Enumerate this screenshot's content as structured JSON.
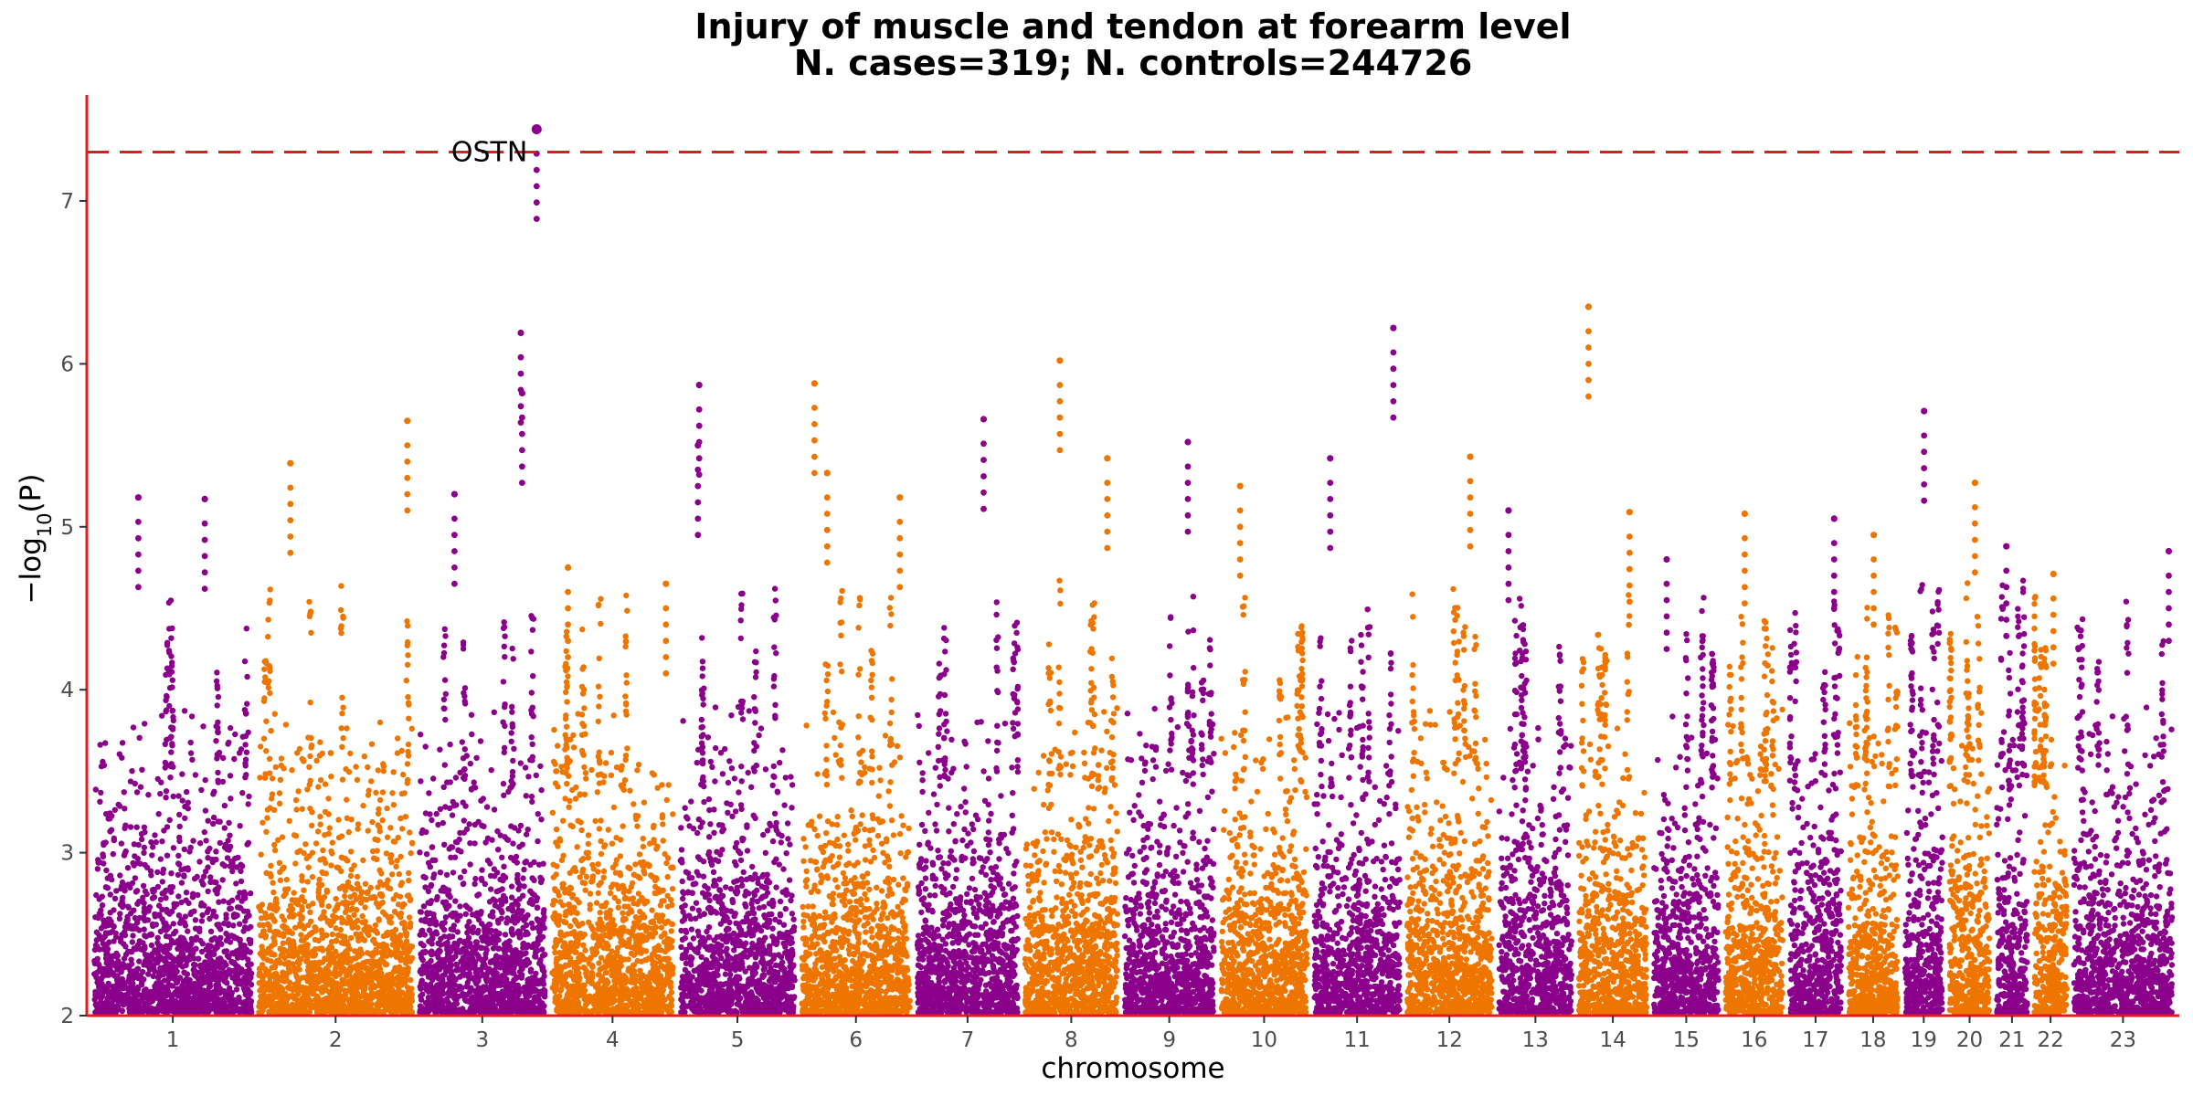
{
  "chart_data": {
    "type": "scatter",
    "subtype": "manhattan",
    "title": "Injury of muscle and tendon at forearm level",
    "subtitle": "N. cases=319; N. controls=244726",
    "xlabel": "chromosome",
    "ylabel_prefix": "−log",
    "ylabel_sub": "10",
    "ylabel_suffix": "(P)",
    "ylim": [
      2,
      7.65
    ],
    "yticks": [
      2,
      3,
      4,
      5,
      6,
      7
    ],
    "grid": false,
    "legend": "none",
    "significance_threshold": 7.3,
    "colors": {
      "odd": "#8B008B",
      "even": "#EE7600",
      "threshold": "#E41A1C",
      "axis": "#E41A1C"
    },
    "chromosomes": [
      {
        "label": "1",
        "length": 249
      },
      {
        "label": "2",
        "length": 243
      },
      {
        "label": "3",
        "length": 198
      },
      {
        "label": "4",
        "length": 191
      },
      {
        "label": "5",
        "length": 181
      },
      {
        "label": "6",
        "length": 171
      },
      {
        "label": "7",
        "length": 159
      },
      {
        "label": "8",
        "length": 146
      },
      {
        "label": "9",
        "length": 141
      },
      {
        "label": "10",
        "length": 136
      },
      {
        "label": "11",
        "length": 135
      },
      {
        "label": "12",
        "length": 134
      },
      {
        "label": "13",
        "length": 115
      },
      {
        "label": "14",
        "length": 107
      },
      {
        "label": "15",
        "length": 102
      },
      {
        "label": "16",
        "length": 90
      },
      {
        "label": "17",
        "length": 81
      },
      {
        "label": "18",
        "length": 78
      },
      {
        "label": "19",
        "length": 59
      },
      {
        "label": "20",
        "length": 63
      },
      {
        "label": "21",
        "length": 48
      },
      {
        "label": "22",
        "length": 51
      },
      {
        "label": "23",
        "length": 155
      }
    ],
    "top_hits": [
      {
        "chr": "1",
        "pos": 175,
        "y": 5.17
      },
      {
        "chr": "1",
        "pos": 70,
        "y": 5.18
      },
      {
        "chr": "2",
        "pos": 50,
        "y": 5.39
      },
      {
        "chr": "2",
        "pos": 235,
        "y": 5.65
      },
      {
        "chr": "3",
        "pos": 55,
        "y": 5.2
      },
      {
        "chr": "3",
        "pos": 160,
        "y": 6.19
      },
      {
        "chr": "3",
        "pos": 162,
        "y": 5.82
      },
      {
        "chr": "3",
        "pos": 185,
        "y": 7.44,
        "label": "OSTN"
      },
      {
        "chr": "4",
        "pos": 25,
        "y": 4.75
      },
      {
        "chr": "4",
        "pos": 180,
        "y": 4.65
      },
      {
        "chr": "5",
        "pos": 30,
        "y": 5.87
      },
      {
        "chr": "5",
        "pos": 28,
        "y": 5.5
      },
      {
        "chr": "6",
        "pos": 20,
        "y": 5.88
      },
      {
        "chr": "6",
        "pos": 40,
        "y": 5.33
      },
      {
        "chr": "6",
        "pos": 155,
        "y": 5.18
      },
      {
        "chr": "7",
        "pos": 105,
        "y": 5.66
      },
      {
        "chr": "8",
        "pos": 55,
        "y": 6.02
      },
      {
        "chr": "8",
        "pos": 130,
        "y": 5.42
      },
      {
        "chr": "9",
        "pos": 100,
        "y": 5.52
      },
      {
        "chr": "10",
        "pos": 30,
        "y": 5.25
      },
      {
        "chr": "11",
        "pos": 25,
        "y": 5.42
      },
      {
        "chr": "11",
        "pos": 125,
        "y": 6.22
      },
      {
        "chr": "12",
        "pos": 100,
        "y": 5.43
      },
      {
        "chr": "13",
        "pos": 15,
        "y": 5.1
      },
      {
        "chr": "14",
        "pos": 15,
        "y": 6.35
      },
      {
        "chr": "14",
        "pos": 80,
        "y": 5.09
      },
      {
        "chr": "15",
        "pos": 20,
        "y": 4.8
      },
      {
        "chr": "16",
        "pos": 30,
        "y": 5.08
      },
      {
        "chr": "17",
        "pos": 70,
        "y": 5.05
      },
      {
        "chr": "18",
        "pos": 40,
        "y": 4.95
      },
      {
        "chr": "19",
        "pos": 30,
        "y": 5.71
      },
      {
        "chr": "20",
        "pos": 40,
        "y": 5.27
      },
      {
        "chr": "21",
        "pos": 15,
        "y": 4.88
      },
      {
        "chr": "22",
        "pos": 30,
        "y": 4.71
      },
      {
        "chr": "23",
        "pos": 150,
        "y": 4.85
      }
    ],
    "annotations": [
      {
        "text": "OSTN",
        "chr": "3",
        "pos": 185,
        "y": 7.3
      }
    ]
  }
}
